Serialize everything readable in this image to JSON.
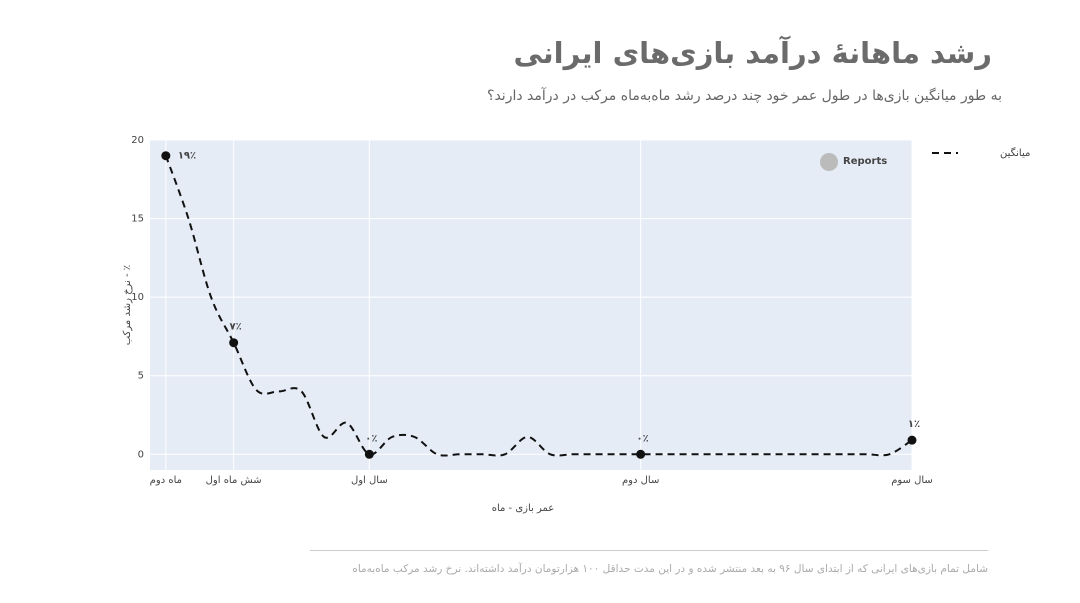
{
  "chart_data": {
    "type": "line",
    "title": "رشد ماهانهٔ درآمد بازی‌های ایرانی",
    "subtitle": "به طور میانگین بازی‌ها در طول عمر خود چند درصد رشد ماه‌به‌ماه مرکب در درآمد دارند؟",
    "x_label": "عمر بازی - ماه",
    "y_label": "٪ - نرخ رشد مرکب",
    "watermark": "Reports",
    "footnote": "شامل تمام بازی‌های ایرانی که از ابتدای سال ۹۶ به بعد منتشر شده و در این مدت حداقل ۱۰۰ هزارتومان درآمد داشته‌اند. نرخ رشد مرکب ماه‌به‌ماه",
    "x": [
      3,
      4,
      5,
      6,
      7,
      8,
      9,
      10,
      11,
      12,
      13,
      14,
      15,
      16,
      17,
      18,
      19,
      20,
      21,
      22,
      23,
      24,
      25,
      26,
      27,
      28,
      29,
      30,
      31,
      32,
      33,
      34,
      35,
      36
    ],
    "series": [
      {
        "name": "میانگین",
        "color": "#111111",
        "values": [
          19,
          15,
          10,
          7.1,
          4.1,
          4,
          4,
          1.1,
          2,
          0,
          1.1,
          1.1,
          0,
          0,
          0,
          0,
          1.1,
          0,
          0,
          0,
          0,
          0,
          0,
          0,
          0,
          0,
          0,
          0,
          0,
          0,
          0,
          0,
          0,
          0.9
        ],
        "value_labels": [
          "۱۹٪",
          null,
          null,
          "۷٪",
          null,
          null,
          null,
          null,
          null,
          "۰٪",
          null,
          null,
          null,
          null,
          null,
          null,
          null,
          null,
          null,
          null,
          null,
          "۰٪",
          null,
          null,
          null,
          null,
          null,
          null,
          null,
          null,
          null,
          null,
          null,
          "۱٪"
        ]
      }
    ],
    "xlim": [
      2.3,
      36
    ],
    "ylim": [
      -1,
      20
    ],
    "xticks": [
      {
        "value": 3,
        "label": "ماه دوم"
      },
      {
        "value": 6,
        "label": "شش ماه اول"
      },
      {
        "value": 12,
        "label": "سال اول"
      },
      {
        "value": 24,
        "label": "سال دوم"
      },
      {
        "value": 36,
        "label": "سال سوم"
      }
    ],
    "yticks": [
      0,
      5,
      10,
      15,
      20
    ],
    "grid": true,
    "dashed": true,
    "legend": "top-right",
    "plot_background": "#e5ecf6"
  }
}
